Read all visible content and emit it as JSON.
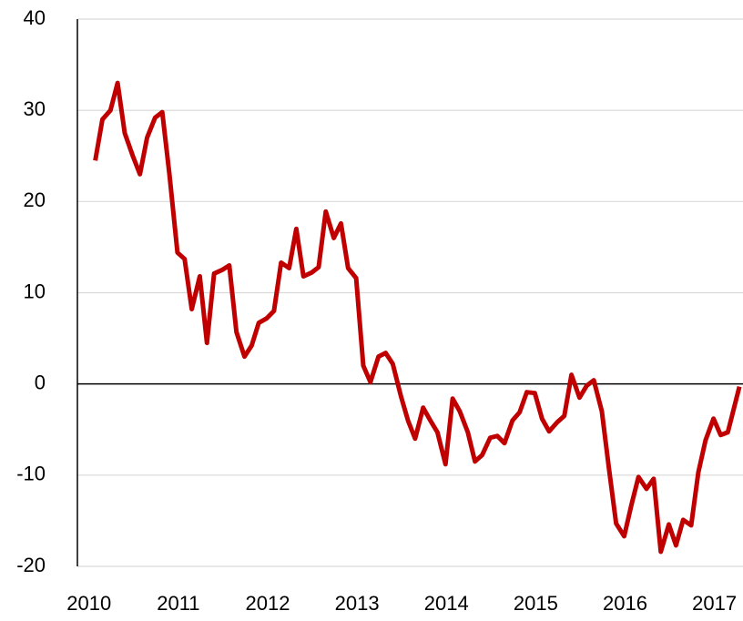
{
  "chart_data": {
    "type": "line",
    "x": [
      2010.07,
      2010.15,
      2010.24,
      2010.32,
      2010.4,
      2010.49,
      2010.57,
      2010.65,
      2010.74,
      2010.82,
      2010.9,
      2010.99,
      2011.07,
      2011.15,
      2011.24,
      2011.32,
      2011.4,
      2011.49,
      2011.57,
      2011.65,
      2011.74,
      2011.82,
      2011.9,
      2011.99,
      2012.07,
      2012.15,
      2012.24,
      2012.32,
      2012.4,
      2012.49,
      2012.57,
      2012.65,
      2012.74,
      2012.82,
      2012.9,
      2012.99,
      2013.07,
      2013.15,
      2013.24,
      2013.32,
      2013.4,
      2013.49,
      2013.57,
      2013.65,
      2013.74,
      2013.82,
      2013.9,
      2013.99,
      2014.07,
      2014.15,
      2014.24,
      2014.32,
      2014.4,
      2014.49,
      2014.57,
      2014.65,
      2014.74,
      2014.82,
      2014.9,
      2014.99,
      2015.07,
      2015.15,
      2015.24,
      2015.32,
      2015.4,
      2015.49,
      2015.57,
      2015.65,
      2015.74,
      2015.82,
      2015.9,
      2015.99,
      2016.07,
      2016.15,
      2016.24,
      2016.32,
      2016.4,
      2016.49,
      2016.57,
      2016.65,
      2016.74,
      2016.82,
      2016.9,
      2016.99,
      2017.07,
      2017.15,
      2017.28
    ],
    "series": [
      {
        "color": "#c00000",
        "values": [
          24.5,
          29,
          30,
          33,
          27.5,
          25,
          23,
          27,
          29.2,
          29.8,
          23,
          14.4,
          13.7,
          8.2,
          11.8,
          4.5,
          12.1,
          12.5,
          13,
          5.7,
          3,
          4.2,
          6.7,
          7.2,
          8,
          13.3,
          12.7,
          17,
          11.8,
          12.2,
          12.8,
          18.9,
          16,
          17.6,
          12.7,
          11.6,
          2,
          0.2,
          3,
          3.4,
          2.2,
          -1.3,
          -4,
          -6,
          -2.6,
          -4,
          -5.3,
          -8.8,
          -1.6,
          -3,
          -5.3,
          -8.5,
          -7.8,
          -5.9,
          -5.7,
          -6.5,
          -4,
          -3.1,
          -0.9,
          -1,
          -3.8,
          -5.2,
          -4.2,
          -3.5,
          1,
          -1.5,
          -0.2,
          0.4,
          -3,
          -9.3,
          -15.3,
          -16.7,
          -13.3,
          -10.2,
          -11.5,
          -10.4,
          -18.4,
          -15.4,
          -17.7,
          -14.9,
          -15.5,
          -9.7,
          -6.2,
          -3.8,
          -5.6,
          -5.3,
          -0.3
        ]
      }
    ],
    "xlim": [
      2009.87,
      2017.32
    ],
    "xticks": [
      2010,
      2011,
      2012,
      2013,
      2014,
      2015,
      2016,
      2017
    ],
    "ylim": [
      -20,
      40
    ],
    "yticks": [
      -20,
      -10,
      0,
      10,
      20,
      30,
      40
    ],
    "grid": true
  }
}
